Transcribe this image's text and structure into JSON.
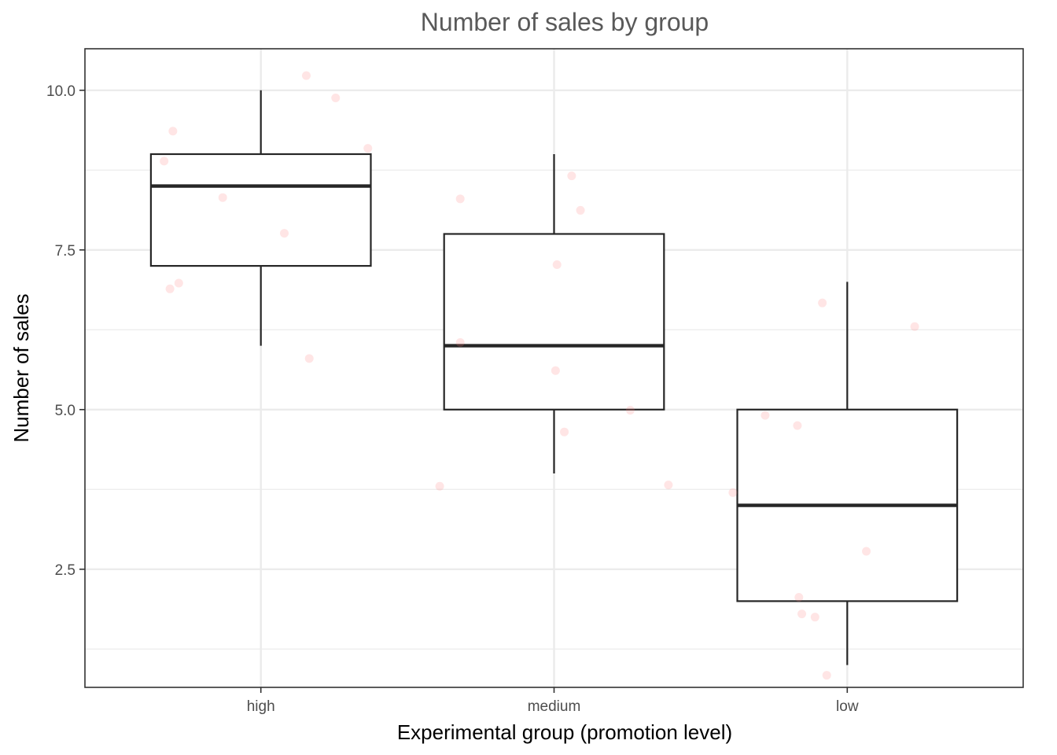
{
  "chart_data": {
    "type": "boxplot",
    "title": "Number of sales by group",
    "xlabel": "Experimental group (promotion level)",
    "ylabel": "Number of sales",
    "ylim": [
      0.65,
      10.65
    ],
    "y_ticks": [
      2.5,
      5.0,
      7.5,
      10.0
    ],
    "y_tick_labels": [
      "2.5",
      "5.0",
      "7.5",
      "10.0"
    ],
    "y_minor_ticks": [
      1.25,
      3.75,
      6.25,
      8.75
    ],
    "grid": true,
    "categories": [
      "high",
      "medium",
      "low"
    ],
    "boxes": [
      {
        "category": "high",
        "min": 6,
        "q1": 7.25,
        "median": 8.5,
        "q3": 9,
        "max": 10
      },
      {
        "category": "medium",
        "min": 4,
        "q1": 5,
        "median": 6,
        "q3": 7.75,
        "max": 9
      },
      {
        "category": "low",
        "min": 1,
        "q1": 2,
        "median": 3.5,
        "q3": 5,
        "max": 7
      }
    ],
    "jitter_points": [
      {
        "category": "high",
        "offset": -0.33,
        "y": 8.89
      },
      {
        "category": "high",
        "offset": -0.3,
        "y": 9.36
      },
      {
        "category": "high",
        "offset": -0.31,
        "y": 6.89
      },
      {
        "category": "high",
        "offset": -0.28,
        "y": 6.98
      },
      {
        "category": "high",
        "offset": -0.13,
        "y": 8.32
      },
      {
        "category": "high",
        "offset": 0.08,
        "y": 7.76
      },
      {
        "category": "high",
        "offset": 0.155,
        "y": 10.23
      },
      {
        "category": "high",
        "offset": 0.165,
        "y": 5.8
      },
      {
        "category": "high",
        "offset": 0.255,
        "y": 9.88
      },
      {
        "category": "high",
        "offset": 0.365,
        "y": 9.09
      },
      {
        "category": "medium",
        "offset": -0.39,
        "y": 3.8
      },
      {
        "category": "medium",
        "offset": -0.32,
        "y": 8.3
      },
      {
        "category": "medium",
        "offset": -0.32,
        "y": 6.05
      },
      {
        "category": "medium",
        "offset": 0.005,
        "y": 5.61
      },
      {
        "category": "medium",
        "offset": 0.01,
        "y": 7.27
      },
      {
        "category": "medium",
        "offset": 0.035,
        "y": 4.65
      },
      {
        "category": "medium",
        "offset": 0.06,
        "y": 8.66
      },
      {
        "category": "medium",
        "offset": 0.09,
        "y": 8.12
      },
      {
        "category": "medium",
        "offset": 0.26,
        "y": 4.99
      },
      {
        "category": "medium",
        "offset": 0.39,
        "y": 3.82
      },
      {
        "category": "low",
        "offset": -0.39,
        "y": 3.7
      },
      {
        "category": "low",
        "offset": -0.28,
        "y": 4.91
      },
      {
        "category": "low",
        "offset": -0.17,
        "y": 4.75
      },
      {
        "category": "low",
        "offset": -0.165,
        "y": 2.06
      },
      {
        "category": "low",
        "offset": -0.155,
        "y": 1.8
      },
      {
        "category": "low",
        "offset": -0.11,
        "y": 1.75
      },
      {
        "category": "low",
        "offset": -0.085,
        "y": 6.67
      },
      {
        "category": "low",
        "offset": -0.07,
        "y": 0.84
      },
      {
        "category": "low",
        "offset": 0.065,
        "y": 2.78
      },
      {
        "category": "low",
        "offset": 0.23,
        "y": 6.3
      }
    ],
    "colors": {
      "box_stroke": "#262626",
      "point_fill": "#ff7f7f",
      "point_opacity": 0.2,
      "grid_major": "#ebebeb",
      "grid_minor": "#ebebeb",
      "panel_border": "#333333"
    }
  }
}
